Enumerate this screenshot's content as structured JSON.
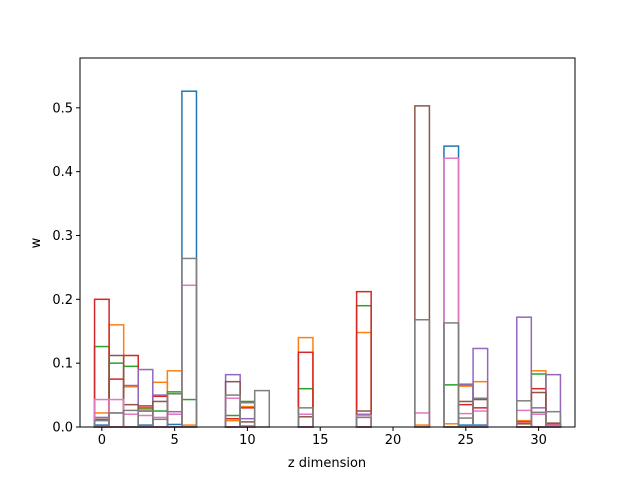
{
  "chart_data": {
    "type": "bar",
    "style": "step-histogram",
    "xlabel": "z dimension",
    "ylabel": "w",
    "xlim": [
      -1.5,
      32.5
    ],
    "ylim": [
      0,
      0.578
    ],
    "xticks": [
      0,
      5,
      10,
      15,
      20,
      25,
      30
    ],
    "xtick_labels": [
      "0",
      "5",
      "10",
      "15",
      "20",
      "25",
      "30"
    ],
    "yticks": [
      0.0,
      0.1,
      0.2,
      0.3,
      0.4,
      0.5
    ],
    "ytick_labels": [
      "0.0",
      "0.1",
      "0.2",
      "0.3",
      "0.4",
      "0.5"
    ],
    "grid": false,
    "legend": "none",
    "x": [
      0,
      1,
      2,
      3,
      4,
      5,
      6,
      7,
      8,
      9,
      10,
      11,
      12,
      13,
      14,
      15,
      16,
      17,
      18,
      19,
      20,
      21,
      22,
      23,
      24,
      25,
      26,
      27,
      28,
      29,
      30,
      31
    ],
    "series": [
      {
        "color": "#1f77b4",
        "values": [
          0.003,
          0,
          0,
          0.003,
          0,
          0.004,
          0.526,
          0,
          0,
          0,
          0,
          0,
          0,
          0,
          0,
          0,
          0,
          0,
          0,
          0,
          0,
          0,
          0,
          0,
          0.44,
          0.003,
          0.003,
          0,
          0,
          0,
          0,
          0.002
        ]
      },
      {
        "color": "#ff7f0e",
        "values": [
          0.022,
          0.16,
          0.063,
          0.028,
          0.07,
          0.088,
          0.003,
          0,
          0,
          0.01,
          0.032,
          0,
          0,
          0,
          0.14,
          0,
          0,
          0,
          0.148,
          0,
          0,
          0,
          0.003,
          0,
          0.005,
          0.064,
          0.071,
          0,
          0,
          0.01,
          0.088,
          0.006
        ]
      },
      {
        "color": "#2ca02c",
        "values": [
          0.126,
          0.1,
          0.095,
          0.03,
          0.025,
          0.055,
          0.043,
          0,
          0,
          0.018,
          0.04,
          0,
          0,
          0,
          0.06,
          0,
          0,
          0,
          0.19,
          0,
          0,
          0,
          0,
          0,
          0.066,
          0.067,
          0.045,
          0,
          0,
          0.005,
          0.083,
          0.004
        ]
      },
      {
        "color": "#d62728",
        "values": [
          0.2,
          0.075,
          0.112,
          0.033,
          0.048,
          0.052,
          0,
          0,
          0,
          0.013,
          0.03,
          0,
          0,
          0,
          0.117,
          0,
          0,
          0,
          0.212,
          0,
          0,
          0,
          0,
          0,
          0,
          0.035,
          0.03,
          0,
          0,
          0.008,
          0.06,
          0.004
        ]
      },
      {
        "color": "#9467bd",
        "values": [
          0.015,
          0.022,
          0.065,
          0.09,
          0.05,
          0.024,
          0,
          0,
          0,
          0.082,
          0.013,
          0,
          0,
          0,
          0.02,
          0,
          0,
          0,
          0.02,
          0,
          0,
          0,
          0,
          0,
          0,
          0.066,
          0.123,
          0,
          0,
          0.172,
          0.03,
          0.082
        ]
      },
      {
        "color": "#8c564b",
        "values": [
          0.012,
          0.112,
          0.035,
          0.025,
          0.04,
          0.02,
          0,
          0,
          0,
          0.071,
          0.008,
          0,
          0,
          0,
          0.016,
          0,
          0,
          0,
          0.025,
          0,
          0,
          0,
          0.503,
          0,
          0,
          0.04,
          0.043,
          0,
          0,
          0.005,
          0.054,
          0.006
        ]
      },
      {
        "color": "#e377c2",
        "values": [
          0.043,
          0.043,
          0.02,
          0.018,
          0.015,
          0.02,
          0.222,
          0,
          0,
          0.045,
          0.002,
          0,
          0,
          0,
          0.02,
          0,
          0,
          0,
          0.018,
          0,
          0,
          0,
          0.022,
          0,
          0.421,
          0.021,
          0.025,
          0,
          0,
          0.026,
          0.02,
          0.003
        ]
      },
      {
        "color": "#7f7f7f",
        "values": [
          0.01,
          0.022,
          0.026,
          0.025,
          0.012,
          0.052,
          0.264,
          0,
          0,
          0.05,
          0.038,
          0.057,
          0,
          0,
          0.03,
          0,
          0,
          0,
          0.015,
          0,
          0,
          0,
          0.168,
          0,
          0.163,
          0.014,
          0.045,
          0,
          0,
          0.041,
          0.023,
          0.024
        ]
      }
    ]
  }
}
